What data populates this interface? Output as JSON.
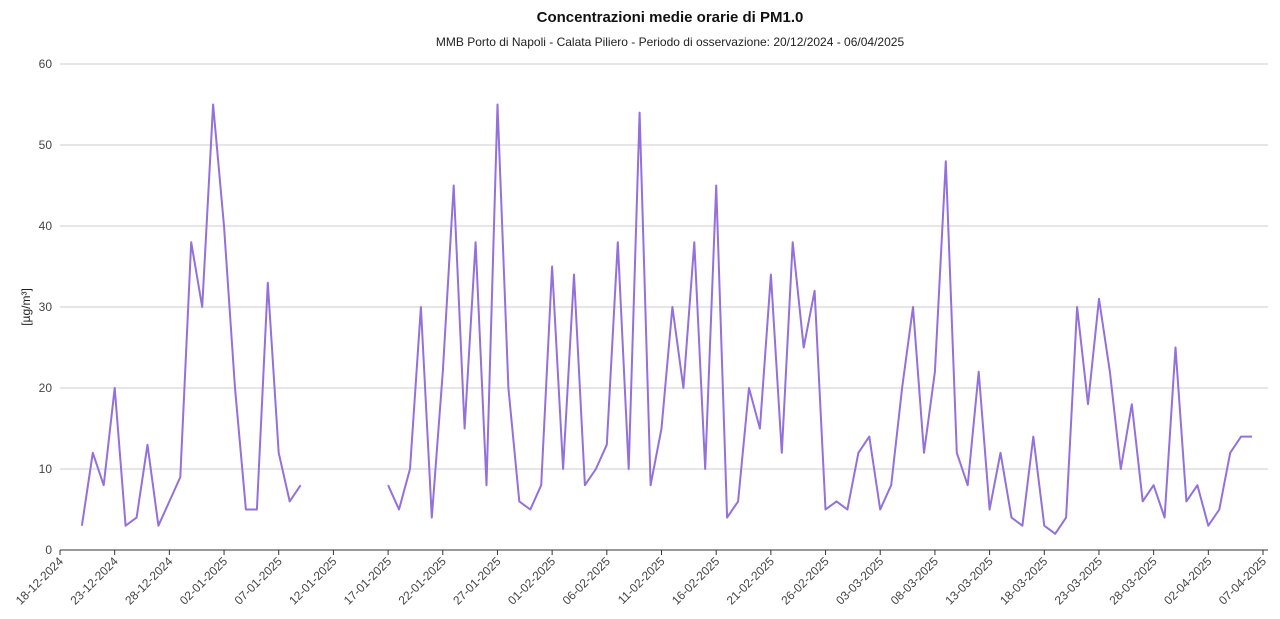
{
  "chart_data": {
    "type": "line",
    "title": "Concentrazioni medie orarie di PM1.0",
    "subtitle": "MMB Porto di Napoli - Calata Piliero - Periodo di osservazione: 20/12/2024 - 06/04/2025",
    "y_label": "[µg/m³]",
    "x": [
      "20-12-2024",
      "21-12-2024",
      "22-12-2024",
      "23-12-2024",
      "24-12-2024",
      "25-12-2024",
      "26-12-2024",
      "27-12-2024",
      "28-12-2024",
      "29-12-2024",
      "30-12-2024",
      "31-12-2024",
      "01-01-2025",
      "02-01-2025",
      "03-01-2025",
      "04-01-2025",
      "05-01-2025",
      "06-01-2025",
      "07-01-2025",
      "08-01-2025",
      "09-01-2025",
      "10-01-2025",
      "11-01-2025",
      "12-01-2025",
      "13-01-2025",
      "14-01-2025",
      "15-01-2025",
      "16-01-2025",
      "17-01-2025",
      "18-01-2025",
      "19-01-2025",
      "20-01-2025",
      "21-01-2025",
      "22-01-2025",
      "23-01-2025",
      "24-01-2025",
      "25-01-2025",
      "26-01-2025",
      "27-01-2025",
      "28-01-2025",
      "29-01-2025",
      "30-01-2025",
      "31-01-2025",
      "01-02-2025",
      "02-02-2025",
      "03-02-2025",
      "04-02-2025",
      "05-02-2025",
      "06-02-2025",
      "07-02-2025",
      "08-02-2025",
      "09-02-2025",
      "10-02-2025",
      "11-02-2025",
      "12-02-2025",
      "13-02-2025",
      "14-02-2025",
      "15-02-2025",
      "16-02-2025",
      "17-02-2025",
      "18-02-2025",
      "19-02-2025",
      "20-02-2025",
      "21-02-2025",
      "22-02-2025",
      "23-02-2025",
      "24-02-2025",
      "25-02-2025",
      "26-02-2025",
      "27-02-2025",
      "28-02-2025",
      "01-03-2025",
      "02-03-2025",
      "03-03-2025",
      "04-03-2025",
      "05-03-2025",
      "06-03-2025",
      "07-03-2025",
      "08-03-2025",
      "09-03-2025",
      "10-03-2025",
      "11-03-2025",
      "12-03-2025",
      "13-03-2025",
      "14-03-2025",
      "15-03-2025",
      "16-03-2025",
      "17-03-2025",
      "18-03-2025",
      "19-03-2025",
      "20-03-2025",
      "21-03-2025",
      "22-03-2025",
      "23-03-2025",
      "24-03-2025",
      "25-03-2025",
      "26-03-2025",
      "27-03-2025",
      "28-03-2025",
      "29-03-2025",
      "30-03-2025",
      "31-03-2025",
      "01-04-2025",
      "02-04-2025",
      "03-04-2025",
      "04-04-2025",
      "05-04-2025",
      "06-04-2025"
    ],
    "series": [
      {
        "name": "PM1.0",
        "color": "#9370db",
        "values": [
          3,
          12,
          8,
          20,
          3,
          4,
          13,
          3,
          6,
          9,
          38,
          30,
          55,
          40,
          20,
          5,
          5,
          33,
          12,
          6,
          8,
          null,
          null,
          null,
          null,
          null,
          null,
          null,
          8,
          5,
          10,
          30,
          4,
          22,
          45,
          15,
          38,
          8,
          55,
          20,
          6,
          5,
          8,
          35,
          10,
          34,
          8,
          10,
          13,
          38,
          10,
          54,
          8,
          15,
          30,
          20,
          38,
          10,
          45,
          4,
          6,
          20,
          15,
          34,
          12,
          38,
          25,
          32,
          5,
          6,
          5,
          12,
          14,
          5,
          8,
          20,
          30,
          12,
          22,
          48,
          12,
          8,
          22,
          5,
          12,
          4,
          3,
          14,
          3,
          2,
          4,
          30,
          18,
          31,
          22,
          10,
          18,
          6,
          8,
          4,
          25,
          6,
          8,
          3,
          5,
          12,
          14,
          14
        ]
      }
    ],
    "xlim": [
      "18-12-2024",
      "07-04-2025"
    ],
    "xticks": [
      "18-12-2024",
      "23-12-2024",
      "28-12-2024",
      "02-01-2025",
      "07-01-2025",
      "12-01-2025",
      "17-01-2025",
      "22-01-2025",
      "27-01-2025",
      "01-02-2025",
      "06-02-2025",
      "11-02-2025",
      "16-02-2025",
      "21-02-2025",
      "26-02-2025",
      "03-03-2025",
      "08-03-2025",
      "13-03-2025",
      "18-03-2025",
      "23-03-2025",
      "28-03-2025",
      "02-04-2025",
      "07-04-2025"
    ],
    "ylim": [
      0,
      60
    ],
    "yticks": [
      0,
      10,
      20,
      30,
      40,
      50,
      60
    ],
    "grid": true
  }
}
